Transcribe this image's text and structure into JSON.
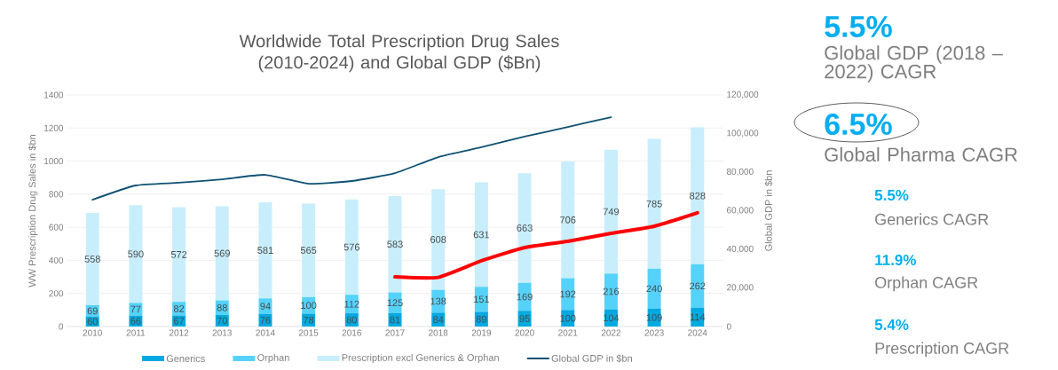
{
  "chart_data": {
    "type": "bar",
    "title": "Worldwide Total Prescription Drug Sales (2010-2024) and Global GDP ($Bn)",
    "ylabel": "WW Prescription Drug Sales in $bn",
    "y2label": "Global GDP in $bn",
    "categories": [
      "2010",
      "2011",
      "2012",
      "2013",
      "2014",
      "2015",
      "2016",
      "2017",
      "2018",
      "2019",
      "2020",
      "2021",
      "2022",
      "2023",
      "2024"
    ],
    "stacked": true,
    "grid": "y",
    "legend": "bottom",
    "ylim": [
      0,
      1400
    ],
    "yticks": [
      0,
      200,
      400,
      600,
      800,
      1000,
      1200,
      1400
    ],
    "y2lim": [
      0,
      120000
    ],
    "y2ticks": [
      {
        "value": 0,
        "label": "0"
      },
      {
        "value": 20000,
        "label": "20,000"
      },
      {
        "value": 40000,
        "label": "40,000"
      },
      {
        "value": 60000,
        "label": "60,000"
      },
      {
        "value": 80000,
        "label": "80,000"
      },
      {
        "value": 100000,
        "label": "100,000"
      },
      {
        "value": 120000,
        "label": "120,000"
      }
    ],
    "series": [
      {
        "name": "Generics",
        "color": "#00a9e0",
        "values": [
          60,
          66,
          67,
          70,
          76,
          78,
          80,
          81,
          84,
          89,
          95,
          100,
          104,
          109,
          114
        ],
        "value_labels": [
          "60",
          "66",
          "67",
          "70",
          "76",
          "78",
          "80",
          "81",
          "84",
          "89",
          "95",
          "100",
          "104",
          "109",
          "114"
        ]
      },
      {
        "name": "Orphan",
        "color": "#55d2fa",
        "values": [
          69,
          77,
          82,
          88,
          94,
          100,
          112,
          125,
          138,
          151,
          169,
          192,
          216,
          240,
          262
        ],
        "value_labels": [
          "69",
          "77",
          "82",
          "88",
          "94",
          "100",
          "112",
          "125",
          "138",
          "151",
          "169",
          "192",
          "216",
          "240",
          "262"
        ]
      },
      {
        "name": "Prescription excl Generics & Orphan",
        "color": "#c8eefc",
        "values": [
          558,
          590,
          572,
          569,
          581,
          565,
          576,
          583,
          608,
          631,
          663,
          706,
          749,
          785,
          828
        ],
        "value_labels": [
          "558",
          "590",
          "572",
          "569",
          "581",
          "565",
          "576",
          "583",
          "608",
          "631",
          "663",
          "706",
          "749",
          "785",
          "828"
        ]
      },
      {
        "name": "Global GDP in $bn",
        "type": "line",
        "axis": "y2",
        "color": "#0f5173",
        "values": [
          65700,
          73100,
          74500,
          76300,
          78600,
          74000,
          75400,
          79500,
          87800,
          92900,
          98400,
          103400,
          108500,
          null,
          null
        ]
      },
      {
        "type": "line",
        "color": "#ff0000",
        "values": [
          null,
          null,
          null,
          null,
          null,
          null,
          null,
          300,
          297,
          397,
          477,
          515,
          563,
          606,
          687
        ]
      }
    ],
    "annotations": [
      "5.5%",
      "Global GDP (2018 – 2022) CAGR",
      "6.5%",
      "Global Pharma CAGR",
      "5.5%",
      "Generics CAGR",
      "11.9%",
      "Orphan CAGR",
      "5.4%",
      "Prescription CAGR"
    ]
  }
}
